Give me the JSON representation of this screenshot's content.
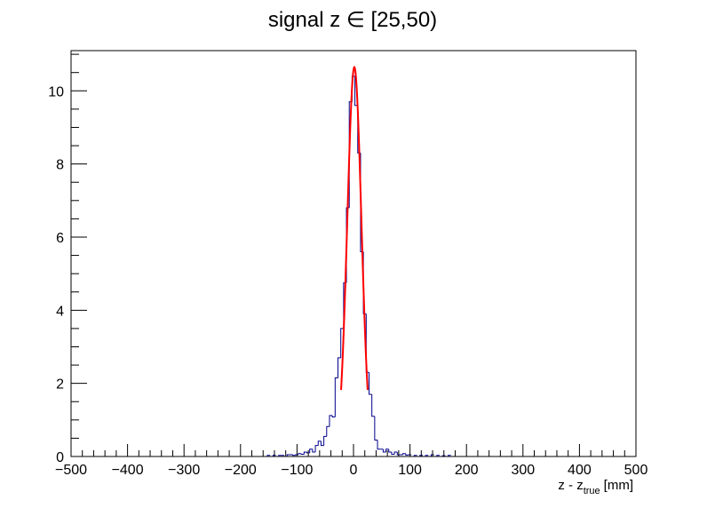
{
  "chart_data": {
    "type": "histogram",
    "title": "signal z ∈ [25,50)",
    "xlabel": "z - z",
    "xlabel_subscript": "true",
    "xlabel_unit": "[mm]",
    "ylabel": "",
    "xlim": [
      -500,
      500
    ],
    "ylim": [
      0,
      11.1
    ],
    "bin_width": 5,
    "x_ticks": [
      -500,
      -400,
      -300,
      -200,
      -100,
      0,
      100,
      200,
      300,
      400,
      500
    ],
    "x_tick_labels": [
      "−500",
      "−400",
      "−300",
      "−200",
      "−100",
      "0",
      "100",
      "200",
      "300",
      "400",
      "500"
    ],
    "y_ticks": [
      0,
      2,
      4,
      6,
      8,
      10
    ],
    "y_tick_labels": [
      "0",
      "2",
      "4",
      "6",
      "8",
      "10"
    ],
    "grid": false,
    "legend": "none",
    "histogram": {
      "name": "",
      "color": "#00008b",
      "bins": [
        {
          "x": -150,
          "y": 0.03
        },
        {
          "x": -140,
          "y": 0.03
        },
        {
          "x": -130,
          "y": 0.03
        },
        {
          "x": -125,
          "y": 0.03
        },
        {
          "x": -115,
          "y": 0.05
        },
        {
          "x": -110,
          "y": 0.05
        },
        {
          "x": -105,
          "y": 0.03
        },
        {
          "x": -100,
          "y": 0.05
        },
        {
          "x": -95,
          "y": 0.08
        },
        {
          "x": -90,
          "y": 0.06
        },
        {
          "x": -85,
          "y": 0.12
        },
        {
          "x": -80,
          "y": 0.1
        },
        {
          "x": -75,
          "y": 0.2
        },
        {
          "x": -70,
          "y": 0.12
        },
        {
          "x": -65,
          "y": 0.3
        },
        {
          "x": -60,
          "y": 0.42
        },
        {
          "x": -55,
          "y": 0.3
        },
        {
          "x": -50,
          "y": 0.55
        },
        {
          "x": -45,
          "y": 0.82
        },
        {
          "x": -40,
          "y": 1.12
        },
        {
          "x": -35,
          "y": 1.08
        },
        {
          "x": -30,
          "y": 2.15
        },
        {
          "x": -25,
          "y": 2.7
        },
        {
          "x": -20,
          "y": 3.5
        },
        {
          "x": -15,
          "y": 4.75
        },
        {
          "x": -10,
          "y": 6.8
        },
        {
          "x": -5,
          "y": 9.7
        },
        {
          "x": 0,
          "y": 10.4
        },
        {
          "x": 5,
          "y": 9.6
        },
        {
          "x": 10,
          "y": 8.3
        },
        {
          "x": 15,
          "y": 5.6
        },
        {
          "x": 20,
          "y": 3.9
        },
        {
          "x": 25,
          "y": 2.3
        },
        {
          "x": 30,
          "y": 1.7
        },
        {
          "x": 35,
          "y": 1.1
        },
        {
          "x": 40,
          "y": 0.45
        },
        {
          "x": 45,
          "y": 0.2
        },
        {
          "x": 50,
          "y": 0.2
        },
        {
          "x": 55,
          "y": 0.12
        },
        {
          "x": 60,
          "y": 0.2
        },
        {
          "x": 65,
          "y": 0.12
        },
        {
          "x": 70,
          "y": 0.06
        },
        {
          "x": 75,
          "y": 0.12
        },
        {
          "x": 80,
          "y": 0.05
        },
        {
          "x": 85,
          "y": 0.05
        },
        {
          "x": 90,
          "y": 0.08
        },
        {
          "x": 95,
          "y": 0.04
        },
        {
          "x": 100,
          "y": 0.05
        },
        {
          "x": 110,
          "y": 0.03
        },
        {
          "x": 120,
          "y": 0.03
        },
        {
          "x": 130,
          "y": 0.03
        },
        {
          "x": 140,
          "y": 0.05
        },
        {
          "x": 150,
          "y": 0.03
        },
        {
          "x": 160,
          "y": 0.02
        },
        {
          "x": 170,
          "y": 0.03
        }
      ]
    },
    "fit": {
      "name": "",
      "type": "gaussian",
      "color": "#ff0000",
      "amplitude": 10.65,
      "mean": 1.5,
      "sigma": 12.5,
      "range": [
        -22,
        25
      ]
    }
  }
}
